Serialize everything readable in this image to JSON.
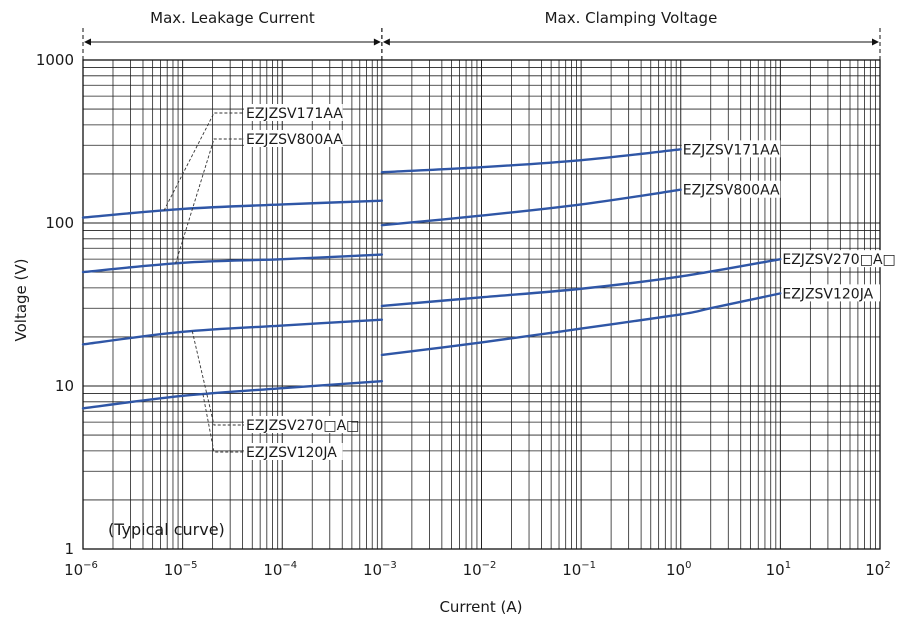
{
  "chart_data": {
    "type": "line",
    "x_scale": "log",
    "y_scale": "log",
    "xlim": [
      1e-06,
      100
    ],
    "ylim": [
      1,
      1000
    ],
    "xlabel": "Current (A)",
    "ylabel": "Voltage (V)",
    "note": "(Typical curve)",
    "grid": true,
    "x_ticks": [
      {
        "value": 1e-06,
        "base": "10",
        "exp": "−6"
      },
      {
        "value": 1e-05,
        "base": "10",
        "exp": "−5"
      },
      {
        "value": 0.0001,
        "base": "10",
        "exp": "−4"
      },
      {
        "value": 0.001,
        "base": "10",
        "exp": "−3"
      },
      {
        "value": 0.01,
        "base": "10",
        "exp": "−2"
      },
      {
        "value": 0.1,
        "base": "10",
        "exp": "−1"
      },
      {
        "value": 1,
        "base": "10",
        "exp": "0"
      },
      {
        "value": 10,
        "base": "10",
        "exp": "1"
      },
      {
        "value": 100,
        "base": "10",
        "exp": "2"
      }
    ],
    "y_ticks": [
      {
        "value": 1,
        "label": "1"
      },
      {
        "value": 10,
        "label": "10"
      },
      {
        "value": 100,
        "label": "100"
      },
      {
        "value": 1000,
        "label": "1000"
      }
    ],
    "sections": [
      {
        "label": "Max. Leakage Current",
        "x_range": [
          1e-06,
          0.001
        ]
      },
      {
        "label": "Max. Clamping Voltage",
        "x_range": [
          0.001,
          100
        ]
      }
    ],
    "series": [
      {
        "name": "EZJZSV171AA",
        "color": "#2f56a6",
        "leakage": {
          "x": [
            1e-06,
            1e-05,
            0.0001,
            0.001
          ],
          "y": [
            108,
            122,
            130,
            137
          ]
        },
        "clamping": {
          "x": [
            0.001,
            0.01,
            0.1,
            1
          ],
          "y": [
            205,
            220,
            243,
            283
          ]
        }
      },
      {
        "name": "EZJZSV800AA",
        "color": "#2f56a6",
        "leakage": {
          "x": [
            1e-06,
            1e-05,
            0.0001,
            0.001
          ],
          "y": [
            50,
            57,
            60,
            64
          ]
        },
        "clamping": {
          "x": [
            0.001,
            0.01,
            0.1,
            1
          ],
          "y": [
            97,
            111,
            130,
            160
          ]
        }
      },
      {
        "name": "EZJZSV270□A□",
        "color": "#2f56a6",
        "leakage": {
          "x": [
            1e-06,
            1e-05,
            0.0001,
            0.001
          ],
          "y": [
            18,
            21.5,
            23.5,
            25.5
          ]
        },
        "clamping": {
          "x": [
            0.001,
            0.01,
            0.1,
            1,
            10
          ],
          "y": [
            31,
            35,
            39.5,
            47,
            60
          ]
        }
      },
      {
        "name": "EZJZSV120JA",
        "color": "#2f56a6",
        "leakage": {
          "x": [
            1e-06,
            1e-05,
            0.0001,
            0.001
          ],
          "y": [
            7.3,
            8.7,
            9.7,
            10.7
          ]
        },
        "clamping": {
          "x": [
            0.001,
            0.01,
            0.1,
            1,
            2,
            10
          ],
          "y": [
            15.5,
            18.5,
            22.5,
            27.5,
            30,
            37
          ]
        }
      }
    ],
    "leakage_callouts": [
      "EZJZSV171AA",
      "EZJZSV800AA",
      "EZJZSV270□A□",
      "EZJZSV120JA"
    ],
    "clamping_labels": [
      "EZJZSV171AA",
      "EZJZSV800AA",
      "EZJZSV270□A□",
      "EZJZSV120JA"
    ]
  }
}
